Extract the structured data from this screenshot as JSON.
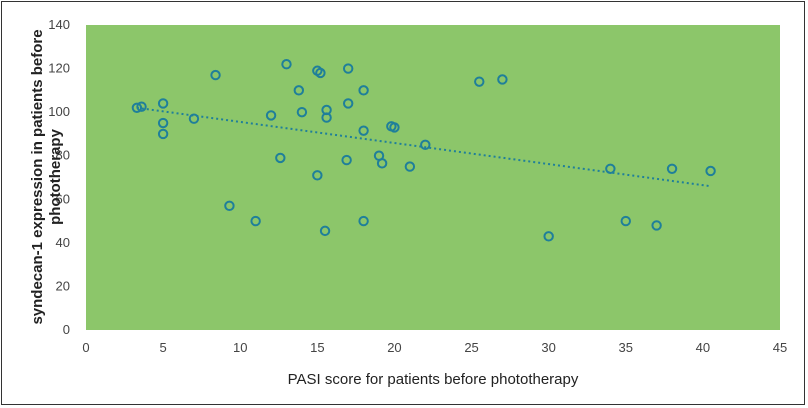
{
  "chart_data": {
    "type": "scatter",
    "title": "",
    "xlabel": "PASI score for patients before phototherapy",
    "ylabel_lines": [
      "syndecan-1 expression in patients before",
      "phototherapy"
    ],
    "xlim": [
      0,
      45
    ],
    "ylim": [
      0,
      140
    ],
    "xticks": [
      "0",
      "5",
      "10",
      "15",
      "20",
      "25",
      "30",
      "35",
      "40",
      "45"
    ],
    "yticks": [
      "0",
      "20",
      "40",
      "60",
      "80",
      "100",
      "120",
      "140"
    ],
    "grid": false,
    "legend": "none",
    "colors": {
      "plot_bg": "#8cc66a",
      "marker": "#1f7f9a",
      "trendline": "#1f7f9a"
    },
    "points": [
      {
        "x": 3.3,
        "y": 102
      },
      {
        "x": 3.6,
        "y": 102.5
      },
      {
        "x": 5.0,
        "y": 104
      },
      {
        "x": 5.0,
        "y": 95
      },
      {
        "x": 5.0,
        "y": 90
      },
      {
        "x": 7.0,
        "y": 97
      },
      {
        "x": 8.4,
        "y": 117
      },
      {
        "x": 9.3,
        "y": 57
      },
      {
        "x": 11.0,
        "y": 50
      },
      {
        "x": 12.0,
        "y": 98.5
      },
      {
        "x": 12.6,
        "y": 79
      },
      {
        "x": 13.0,
        "y": 122
      },
      {
        "x": 13.8,
        "y": 110
      },
      {
        "x": 14.0,
        "y": 100
      },
      {
        "x": 15.0,
        "y": 119
      },
      {
        "x": 15.2,
        "y": 118
      },
      {
        "x": 15.0,
        "y": 71
      },
      {
        "x": 15.5,
        "y": 45.5
      },
      {
        "x": 15.6,
        "y": 101
      },
      {
        "x": 15.6,
        "y": 97.5
      },
      {
        "x": 17.0,
        "y": 120
      },
      {
        "x": 17.0,
        "y": 104
      },
      {
        "x": 16.9,
        "y": 78
      },
      {
        "x": 18.0,
        "y": 110
      },
      {
        "x": 18.0,
        "y": 91.5
      },
      {
        "x": 18.0,
        "y": 50
      },
      {
        "x": 19.0,
        "y": 80
      },
      {
        "x": 19.2,
        "y": 76.5
      },
      {
        "x": 19.8,
        "y": 93.5
      },
      {
        "x": 20.0,
        "y": 93
      },
      {
        "x": 21.0,
        "y": 75
      },
      {
        "x": 22.0,
        "y": 85
      },
      {
        "x": 25.5,
        "y": 114
      },
      {
        "x": 27.0,
        "y": 115
      },
      {
        "x": 30.0,
        "y": 43
      },
      {
        "x": 34.0,
        "y": 74
      },
      {
        "x": 35.0,
        "y": 50
      },
      {
        "x": 37.0,
        "y": 48
      },
      {
        "x": 38.0,
        "y": 74
      },
      {
        "x": 40.5,
        "y": 73
      }
    ],
    "trendline": {
      "style": "dotted",
      "x": [
        3.3,
        40.5
      ],
      "y": [
        102,
        66
      ]
    }
  }
}
